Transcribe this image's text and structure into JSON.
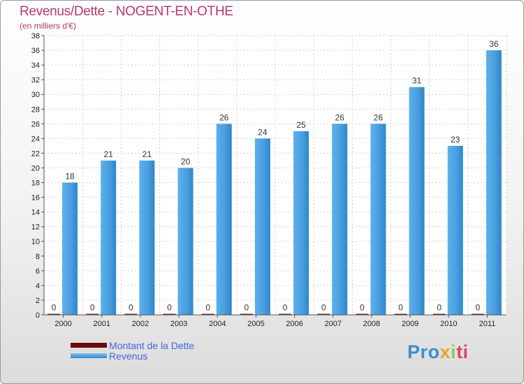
{
  "chart_data": {
    "type": "bar",
    "title": "Revenus/Dette - NOGENT-EN-OTHE",
    "subtitle": "(en milliers d'€)",
    "categories": [
      "2000",
      "2001",
      "2002",
      "2003",
      "2004",
      "2005",
      "2006",
      "2007",
      "2008",
      "2009",
      "2010",
      "2011"
    ],
    "series": [
      {
        "name": "Montant de la Dette",
        "color": "#6b0a0a",
        "values": [
          0,
          0,
          0,
          0,
          0,
          0,
          0,
          0,
          0,
          0,
          0,
          0
        ]
      },
      {
        "name": "Revenus",
        "color": "#4fa3e3",
        "values": [
          18,
          21,
          21,
          20,
          26,
          24,
          25,
          26,
          26,
          31,
          23,
          36
        ]
      }
    ],
    "ylim": [
      0,
      38
    ],
    "yticks": [
      0,
      2,
      4,
      6,
      8,
      10,
      12,
      14,
      16,
      18,
      20,
      22,
      24,
      26,
      28,
      30,
      32,
      34,
      36,
      38
    ],
    "grid": true,
    "legend": "bottom-left"
  },
  "branding": {
    "parts": [
      "Pro",
      "x",
      "i",
      "ti"
    ]
  }
}
